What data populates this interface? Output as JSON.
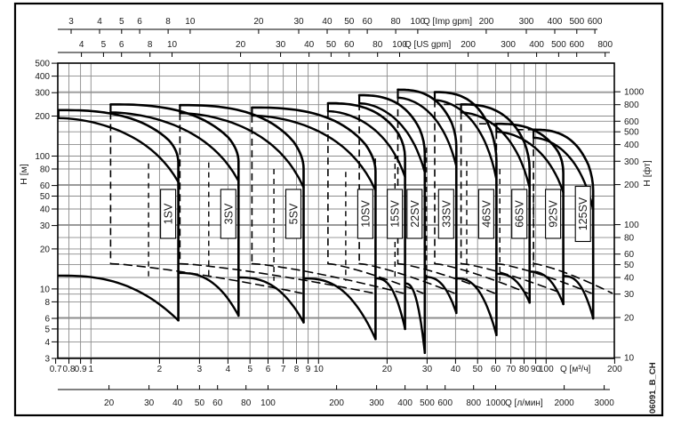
{
  "figure": {
    "code_label": "06091_B_CH",
    "background": "#ffffff",
    "line_color": "#000000",
    "grid_color": "#8c8c8c",
    "text_color": "#1a1a1a"
  },
  "axes": {
    "top_imp": {
      "unit_label": "Q [Imp gpm]",
      "ticks": [
        3,
        4,
        5,
        6,
        8,
        10,
        20,
        30,
        40,
        50,
        60,
        80,
        100,
        200,
        300,
        400,
        500,
        600
      ]
    },
    "top_us": {
      "unit_label": "Q [US gpm]",
      "ticks": [
        4,
        5,
        6,
        8,
        10,
        20,
        30,
        40,
        50,
        60,
        80,
        100,
        200,
        300,
        400,
        500,
        600,
        800
      ]
    },
    "bottom_m3h": {
      "unit_label": "Q [м³/ч]",
      "ticks": [
        0.7,
        0.8,
        0.9,
        1,
        2,
        3,
        4,
        5,
        6,
        7,
        8,
        9,
        10,
        20,
        30,
        40,
        50,
        60,
        70,
        80,
        90,
        100,
        200
      ]
    },
    "bottom_lmin": {
      "unit_label": "Q [л/мин]",
      "ticks": [
        20,
        30,
        40,
        50,
        60,
        80,
        100,
        200,
        300,
        400,
        500,
        600,
        800,
        1000,
        2000,
        3000
      ]
    },
    "left_m": {
      "unit_label": "H [м]",
      "ticks": [
        500,
        400,
        300,
        200,
        100,
        80,
        60,
        50,
        40,
        30,
        20,
        10,
        8,
        6,
        5,
        4,
        3
      ]
    },
    "right_ft": {
      "unit_label": "H [фт]",
      "ticks": [
        1000,
        800,
        600,
        500,
        400,
        300,
        200,
        100,
        80,
        60,
        50,
        40,
        30,
        20,
        10
      ]
    }
  },
  "chart_data": {
    "type": "line",
    "title": "",
    "x_axis": {
      "label": "Q [м³/ч]",
      "scale": "log",
      "range": [
        0.7,
        200
      ]
    },
    "y_axis": {
      "label": "H [м]",
      "scale": "log",
      "range": [
        3,
        500
      ]
    },
    "grid": "log-log, metric and imperial head gridlines",
    "legend_position": "labels-in-plot",
    "families": [
      {
        "name": "1SV",
        "q_min": 0.72,
        "h_max": 222,
        "q_max": 2.42,
        "h_knee": 110,
        "h_min": 5.8,
        "q_bottom_start": 0.72,
        "h_bottom_start": 12.6,
        "min_flow_dash": false,
        "top_dash_stub": false
      },
      {
        "name": "3SV",
        "q_min": 1.22,
        "h_max": 245,
        "q_max": 4.45,
        "h_knee": 112,
        "h_min": 6.3,
        "q_bottom_start": 2.42,
        "h_bottom_start": 13.2,
        "min_flow_dash": true,
        "top_dash_stub": false
      },
      {
        "name": "5SV",
        "q_min": 2.46,
        "h_max": 242,
        "q_max": 8.6,
        "h_knee": 100,
        "h_min": 5.6,
        "q_bottom_start": 4.45,
        "h_bottom_start": 12.2,
        "min_flow_dash": true,
        "top_dash_stub": false
      },
      {
        "name": "10SV",
        "q_min": 5.1,
        "h_max": 232,
        "q_max": 17.8,
        "h_knee": 95,
        "h_min": 4.2,
        "q_bottom_start": 8.6,
        "h_bottom_start": 12.0,
        "min_flow_dash": true,
        "top_dash_stub": false
      },
      {
        "name": "15SV",
        "q_min": 11.0,
        "h_max": 250,
        "q_max": 24.0,
        "h_knee": 120,
        "h_min": 5.0,
        "q_bottom_start": 17.8,
        "h_bottom_start": 12.0,
        "min_flow_dash": true,
        "top_dash_stub": false
      },
      {
        "name": "22SV",
        "q_min": 15.1,
        "h_max": 287,
        "q_max": 29.3,
        "h_knee": 130,
        "h_min": 3.3,
        "q_bottom_start": 24.0,
        "h_bottom_start": 11.0,
        "min_flow_dash": true,
        "top_dash_stub": false
      },
      {
        "name": "33SV",
        "q_min": 22.3,
        "h_max": 316,
        "q_max": 40.3,
        "h_knee": 145,
        "h_min": 6.6,
        "q_bottom_start": 29.3,
        "h_bottom_start": 12.3,
        "min_flow_dash": true,
        "top_dash_stub": false
      },
      {
        "name": "46SV",
        "q_min": 32.4,
        "h_max": 303,
        "q_max": 60.5,
        "h_knee": 115,
        "h_min": 4.5,
        "q_bottom_start": 40.3,
        "h_bottom_start": 12.0,
        "min_flow_dash": true,
        "top_dash_stub": false
      },
      {
        "name": "66SV",
        "q_min": 42.3,
        "h_max": 245,
        "q_max": 84.6,
        "h_knee": 100,
        "h_min": 7.9,
        "q_bottom_start": 60.5,
        "h_bottom_start": 13.0,
        "min_flow_dash": true,
        "top_dash_stub": true
      },
      {
        "name": "92SV",
        "q_min": 60.5,
        "h_max": 175,
        "q_max": 119,
        "h_knee": 92,
        "h_min": 7.7,
        "q_bottom_start": 84.6,
        "h_bottom_start": 13.5,
        "min_flow_dash": true,
        "top_dash_stub": true
      },
      {
        "name": "125SV",
        "q_min": 88,
        "h_max": 158,
        "q_max": 161,
        "h_knee": 68,
        "h_min": 6.0,
        "q_bottom_start": 119,
        "h_bottom_start": 12.5,
        "min_flow_dash": true,
        "top_dash_stub": true
      }
    ]
  }
}
